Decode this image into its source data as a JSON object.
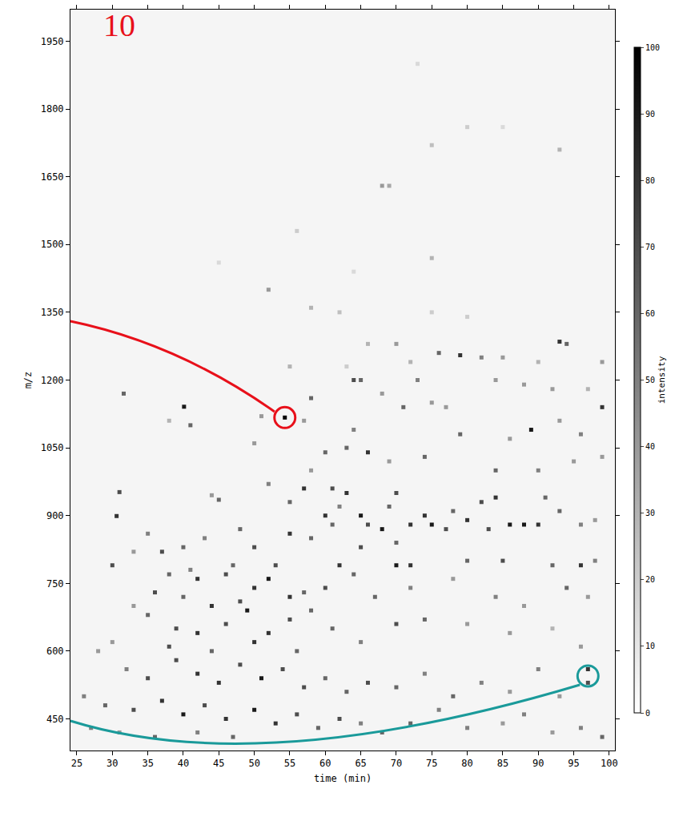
{
  "chart_data": {
    "type": "scatter",
    "marker": "square",
    "x_label": "time (min)",
    "y_label": "m/z",
    "xlim": [
      24.1,
      100.8
    ],
    "ylim": [
      380,
      2020
    ],
    "xticks": [
      25,
      30,
      35,
      40,
      45,
      50,
      55,
      60,
      65,
      70,
      75,
      80,
      85,
      90,
      95,
      100
    ],
    "yticks": [
      450,
      600,
      750,
      900,
      1050,
      1200,
      1350,
      1500,
      1650,
      1800,
      1950
    ],
    "grid": false,
    "color_label": "intensity",
    "color_range": [
      0,
      100
    ],
    "color_ticks": [
      0,
      10,
      20,
      30,
      40,
      50,
      60,
      70,
      80,
      90,
      100
    ],
    "annotations": [
      {
        "text": "10",
        "color": "#e8101a"
      }
    ],
    "highlights": [
      {
        "x": 54.3,
        "y": 1117,
        "color": "#e8101a"
      },
      {
        "x": 97,
        "y": 545,
        "color": "#1a9a9a"
      }
    ],
    "x": [
      73,
      68,
      69,
      80,
      85,
      75,
      93,
      56,
      75,
      64,
      45,
      52,
      58,
      62,
      75,
      80,
      93,
      94,
      70,
      66,
      76,
      79,
      82,
      85,
      72,
      90,
      99,
      55,
      63,
      58,
      64,
      65,
      68,
      73,
      75,
      84,
      88,
      92,
      97,
      99,
      71,
      77,
      89,
      93,
      64,
      79,
      86,
      96,
      54.3,
      57,
      40.1,
      41,
      38,
      31.6,
      51,
      50,
      60,
      63,
      66,
      69,
      74,
      84,
      90,
      95,
      99,
      31,
      30.6,
      45,
      44,
      52,
      55,
      57,
      58,
      61,
      63,
      60,
      61,
      62,
      65,
      66,
      68,
      69,
      70,
      72,
      74,
      75,
      77,
      78,
      80,
      82,
      84,
      86,
      88,
      90,
      91,
      93,
      96,
      98,
      83,
      70,
      65,
      58,
      55,
      50,
      48,
      43,
      40,
      37,
      35,
      33,
      53,
      62,
      70,
      72,
      80,
      85,
      92,
      96,
      98,
      47,
      41,
      30,
      38,
      42,
      46,
      50,
      52,
      55,
      57,
      60,
      64,
      67,
      72,
      78,
      84,
      88,
      94,
      97,
      36,
      40,
      44,
      48,
      33,
      35,
      39,
      42,
      46,
      49,
      52,
      55,
      58,
      61,
      65,
      70,
      74,
      80,
      86,
      92,
      96,
      30,
      38,
      44,
      50,
      56,
      28,
      32,
      35,
      39,
      42,
      45,
      48,
      51,
      54,
      57,
      60,
      63,
      66,
      70,
      74,
      78,
      82,
      86,
      90,
      93,
      97,
      97,
      26,
      29,
      33,
      37,
      40,
      43,
      46,
      50,
      53,
      56,
      59,
      62,
      65,
      68,
      72,
      76,
      80,
      85,
      88,
      92,
      96,
      99,
      27,
      31,
      36,
      42,
      47
    ],
    "y": [
      1900,
      1630,
      1630,
      1760,
      1760,
      1720,
      1710,
      1530,
      1470,
      1440,
      1460,
      1400,
      1360,
      1350,
      1350,
      1340,
      1285,
      1280,
      1280,
      1280,
      1260,
      1255,
      1250,
      1250,
      1240,
      1240,
      1240,
      1230,
      1230,
      1160,
      1200,
      1200,
      1170,
      1200,
      1150,
      1200,
      1190,
      1180,
      1180,
      1140,
      1140,
      1140,
      1090,
      1110,
      1090,
      1080,
      1070,
      1080,
      1117,
      1110,
      1141,
      1100,
      1110,
      1170,
      1120,
      1060,
      1040,
      1050,
      1040,
      1020,
      1030,
      1000,
      1000,
      1020,
      1030,
      952,
      899,
      935,
      945,
      970,
      930,
      960,
      1000,
      960,
      950,
      900,
      880,
      920,
      900,
      880,
      870,
      920,
      950,
      880,
      900,
      880,
      870,
      910,
      890,
      930,
      940,
      880,
      880,
      880,
      940,
      910,
      880,
      890,
      870,
      840,
      830,
      850,
      860,
      830,
      870,
      850,
      830,
      820,
      860,
      820,
      790,
      790,
      790,
      790,
      800,
      800,
      790,
      790,
      800,
      790,
      780,
      790,
      770,
      760,
      770,
      740,
      760,
      720,
      730,
      740,
      770,
      720,
      740,
      760,
      720,
      700,
      740,
      720,
      730,
      720,
      700,
      710,
      700,
      680,
      650,
      640,
      660,
      690,
      640,
      670,
      690,
      650,
      620,
      660,
      670,
      660,
      640,
      650,
      610,
      620,
      610,
      600,
      620,
      600,
      600,
      560,
      540,
      580,
      550,
      530,
      570,
      540,
      560,
      520,
      540,
      510,
      530,
      520,
      550,
      500,
      530,
      510,
      560,
      500,
      560,
      530,
      500,
      480,
      470,
      490,
      460,
      480,
      450,
      470,
      440,
      460,
      430,
      450,
      440,
      420,
      440,
      470,
      430,
      440,
      460,
      420,
      430,
      410,
      430,
      420,
      410,
      420,
      410
    ],
    "intensity": [
      15,
      40,
      35,
      20,
      15,
      25,
      30,
      20,
      30,
      15,
      15,
      40,
      30,
      25,
      20,
      20,
      80,
      60,
      40,
      30,
      60,
      80,
      50,
      40,
      30,
      30,
      40,
      30,
      20,
      60,
      70,
      60,
      40,
      50,
      40,
      40,
      40,
      40,
      30,
      80,
      60,
      40,
      90,
      40,
      50,
      60,
      40,
      50,
      100,
      40,
      90,
      60,
      30,
      60,
      40,
      40,
      60,
      60,
      80,
      40,
      60,
      60,
      50,
      40,
      40,
      70,
      80,
      60,
      40,
      50,
      60,
      80,
      40,
      70,
      80,
      80,
      60,
      50,
      90,
      70,
      90,
      60,
      70,
      80,
      80,
      90,
      70,
      60,
      80,
      70,
      80,
      90,
      90,
      80,
      60,
      60,
      50,
      40,
      70,
      60,
      70,
      60,
      80,
      70,
      60,
      50,
      60,
      70,
      50,
      40,
      70,
      80,
      90,
      80,
      60,
      70,
      60,
      80,
      50,
      60,
      50,
      70,
      60,
      80,
      70,
      80,
      90,
      80,
      60,
      70,
      60,
      60,
      50,
      40,
      50,
      40,
      60,
      40,
      70,
      60,
      80,
      70,
      40,
      60,
      70,
      80,
      70,
      90,
      80,
      70,
      60,
      60,
      50,
      70,
      60,
      40,
      40,
      30,
      40,
      40,
      70,
      60,
      80,
      60,
      40,
      50,
      70,
      70,
      80,
      80,
      70,
      90,
      70,
      70,
      60,
      60,
      70,
      60,
      50,
      60,
      50,
      40,
      50,
      40,
      80,
      70,
      50,
      60,
      70,
      80,
      90,
      70,
      80,
      90,
      80,
      70,
      60,
      70,
      50,
      60,
      60,
      50,
      50,
      40,
      50,
      40,
      50,
      60,
      50,
      40,
      60,
      50,
      60
    ]
  }
}
